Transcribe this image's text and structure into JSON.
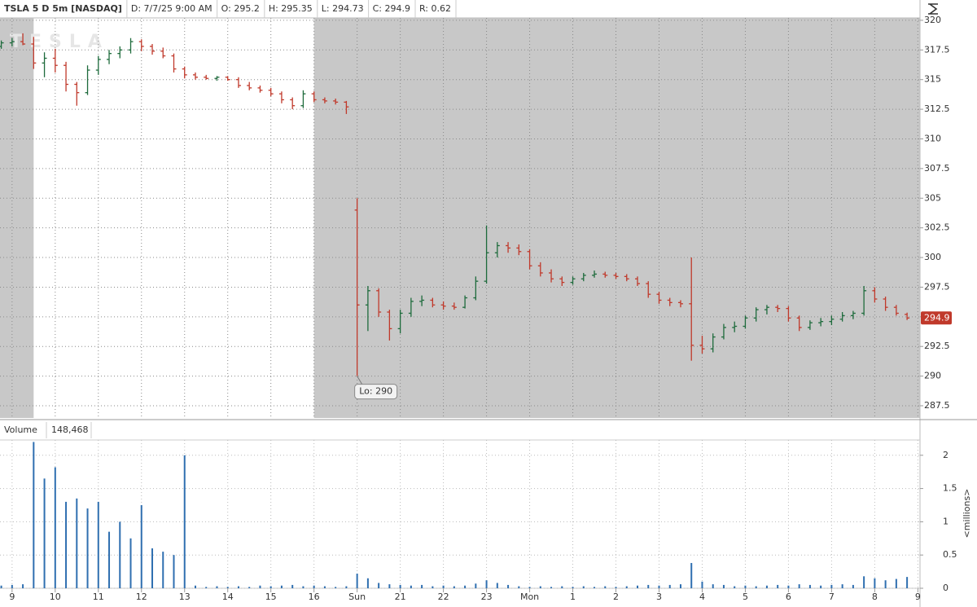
{
  "header": [
    "TSLA 5 D 5m [NASDAQ]",
    "D: 7/7/25 9:00 AM",
    "O: 295.2",
    "H: 295.35",
    "L: 294.73",
    "C: 294.9",
    "R: 0.62"
  ],
  "chart_data": [
    {
      "type": "ohlc",
      "watermark": "TESLA",
      "last_price": 294.9,
      "session": [
        0.5,
        7
      ],
      "up_color": "#1e6b3c",
      "down_color": "#c0392b",
      "grid": true,
      "xlim": [
        -0.28,
        21.05
      ],
      "ylim": [
        286.47,
        320.2
      ],
      "yticks": [
        287.5,
        290,
        292.5,
        295,
        297.5,
        300,
        302.5,
        305,
        307.5,
        310,
        312.5,
        315,
        317.5,
        320
      ],
      "annotation": {
        "text": "Lo: 290",
        "x": 8.0,
        "y": 290
      },
      "x": [
        -0.25,
        0,
        0.25,
        0.5,
        0.75,
        1,
        1.25,
        1.5,
        1.75,
        2,
        2.25,
        2.5,
        2.75,
        3,
        3.25,
        3.5,
        3.75,
        4,
        4.25,
        4.5,
        4.75,
        5,
        5.25,
        5.5,
        5.75,
        6,
        6.25,
        6.5,
        6.75,
        7,
        7.25,
        7.5,
        7.75,
        8,
        8.25,
        8.5,
        8.75,
        9,
        9.25,
        9.5,
        9.75,
        10,
        10.25,
        10.5,
        10.75,
        11,
        11.25,
        11.5,
        11.75,
        12,
        12.25,
        12.5,
        12.75,
        13,
        13.25,
        13.5,
        13.75,
        14,
        14.25,
        14.5,
        14.75,
        15,
        15.25,
        15.5,
        15.75,
        16,
        16.25,
        16.5,
        16.75,
        17,
        17.25,
        17.5,
        17.75,
        18,
        18.25,
        18.5,
        18.75,
        19,
        19.25,
        19.5,
        19.75,
        20,
        20.25,
        20.5,
        20.75
      ],
      "open": [
        317.8,
        318.1,
        318.2,
        318.0,
        316.4,
        316.8,
        316.2,
        314.6,
        313.9,
        315.8,
        316.7,
        317.2,
        317.5,
        318.2,
        317.8,
        317.4,
        317.0,
        315.9,
        315.4,
        315.2,
        315.1,
        315.2,
        315.0,
        314.5,
        314.3,
        314.1,
        313.8,
        313.3,
        312.8,
        313.8,
        313.3,
        313.2,
        313.1,
        304.0,
        296.0,
        297.2,
        295.4,
        294.0,
        295.3,
        296.3,
        296.4,
        296.0,
        295.9,
        295.8,
        296.6,
        298.0,
        300.4,
        301.0,
        300.8,
        300.5,
        299.3,
        298.7,
        298.2,
        297.9,
        298.2,
        298.5,
        298.6,
        298.5,
        298.4,
        298.2,
        297.8,
        296.9,
        296.4,
        296.2,
        296.1,
        292.6,
        292.3,
        293.3,
        294.1,
        294.2,
        294.9,
        295.6,
        295.8,
        295.7,
        294.9,
        294.1,
        294.5,
        294.6,
        294.8,
        295.1,
        295.3,
        297.2,
        296.5,
        295.8,
        295.2
      ],
      "high": [
        318.3,
        318.5,
        318.9,
        318.6,
        317.3,
        317.6,
        316.5,
        314.8,
        316.2,
        317.0,
        317.5,
        317.8,
        318.5,
        318.4,
        318.0,
        317.7,
        317.2,
        316.1,
        315.6,
        315.4,
        315.3,
        315.3,
        315.2,
        314.8,
        314.5,
        314.3,
        314.0,
        313.5,
        314.1,
        314.0,
        313.5,
        313.4,
        313.2,
        305.0,
        297.6,
        297.4,
        295.6,
        295.6,
        296.6,
        296.8,
        296.6,
        296.3,
        296.2,
        296.8,
        298.4,
        302.7,
        301.3,
        301.3,
        301.1,
        300.7,
        299.6,
        299.0,
        298.4,
        298.4,
        298.7,
        298.9,
        298.8,
        298.7,
        298.6,
        298.4,
        298.0,
        297.1,
        296.6,
        296.4,
        300.0,
        293.4,
        293.6,
        294.4,
        294.6,
        295.1,
        295.8,
        296.0,
        296.0,
        295.9,
        295.1,
        294.7,
        294.9,
        295.1,
        295.4,
        295.5,
        297.6,
        297.5,
        296.7,
        296.0,
        295.35
      ],
      "low": [
        317.6,
        317.8,
        317.9,
        315.9,
        315.2,
        315.6,
        314.0,
        312.8,
        313.7,
        315.4,
        316.3,
        316.8,
        317.2,
        317.4,
        317.1,
        316.8,
        315.6,
        315.1,
        315.0,
        315.0,
        314.9,
        314.9,
        314.3,
        314.1,
        313.9,
        313.6,
        313.0,
        312.5,
        312.6,
        313.1,
        313.0,
        312.9,
        312.1,
        290.0,
        293.8,
        295.0,
        293.0,
        293.6,
        295.0,
        295.9,
        295.8,
        295.6,
        295.6,
        295.7,
        296.4,
        297.8,
        300.0,
        300.4,
        300.2,
        299.0,
        298.4,
        297.9,
        297.6,
        297.7,
        298.0,
        298.3,
        298.3,
        298.2,
        298.0,
        297.6,
        296.6,
        296.1,
        295.9,
        295.8,
        291.3,
        291.9,
        292.0,
        293.1,
        293.7,
        294.0,
        294.6,
        295.2,
        295.4,
        294.6,
        293.8,
        293.9,
        294.2,
        294.3,
        294.6,
        294.8,
        295.1,
        296.2,
        295.5,
        295.1,
        294.73
      ],
      "close": [
        318.1,
        318.2,
        318.0,
        316.4,
        316.8,
        316.2,
        314.6,
        313.9,
        315.8,
        316.7,
        317.2,
        317.5,
        318.2,
        317.8,
        317.4,
        317.0,
        315.9,
        315.4,
        315.2,
        315.1,
        315.2,
        315.0,
        314.5,
        314.3,
        314.1,
        313.8,
        313.3,
        312.8,
        313.8,
        313.3,
        313.2,
        313.1,
        312.7,
        296.0,
        297.2,
        295.4,
        294.0,
        295.3,
        296.3,
        296.4,
        296.0,
        295.9,
        295.8,
        296.6,
        298.0,
        300.4,
        301.0,
        300.8,
        300.5,
        299.3,
        298.7,
        298.2,
        297.9,
        298.2,
        298.5,
        298.6,
        298.5,
        298.4,
        298.2,
        297.8,
        296.9,
        296.4,
        296.2,
        296.1,
        292.6,
        292.3,
        293.3,
        294.1,
        294.2,
        294.9,
        295.6,
        295.8,
        295.7,
        294.9,
        294.1,
        294.5,
        294.6,
        294.8,
        295.1,
        295.3,
        297.2,
        296.5,
        295.8,
        295.3,
        294.9
      ]
    },
    {
      "type": "bar",
      "title": "Volume",
      "value_label": "148,468",
      "ylabel": "<millions>",
      "color": "#2f6fb0",
      "xlim": [
        -0.28,
        21.05
      ],
      "ylim": [
        0,
        2.23
      ],
      "yticks": [
        0,
        0.5,
        1,
        1.5,
        2
      ],
      "xticks": [
        {
          "value": 0,
          "label": "9"
        },
        {
          "value": 1,
          "label": "10"
        },
        {
          "value": 2,
          "label": "11"
        },
        {
          "value": 3,
          "label": "12"
        },
        {
          "value": 4,
          "label": "13"
        },
        {
          "value": 5,
          "label": "14"
        },
        {
          "value": 6,
          "label": "15"
        },
        {
          "value": 7,
          "label": "16"
        },
        {
          "value": 8,
          "label": "Sun"
        },
        {
          "value": 9,
          "label": "21"
        },
        {
          "value": 10,
          "label": "22"
        },
        {
          "value": 11,
          "label": "23"
        },
        {
          "value": 12,
          "label": "Mon"
        },
        {
          "value": 13,
          "label": "1"
        },
        {
          "value": 14,
          "label": "2"
        },
        {
          "value": 15,
          "label": "3"
        },
        {
          "value": 16,
          "label": "4"
        },
        {
          "value": 17,
          "label": "5"
        },
        {
          "value": 18,
          "label": "6"
        },
        {
          "value": 19,
          "label": "7"
        },
        {
          "value": 20,
          "label": "8"
        },
        {
          "value": 21,
          "label": "9"
        }
      ],
      "x": [
        -0.25,
        0,
        0.25,
        0.5,
        0.75,
        1,
        1.25,
        1.5,
        1.75,
        2,
        2.25,
        2.5,
        2.75,
        3,
        3.25,
        3.5,
        3.75,
        4,
        4.25,
        4.5,
        4.75,
        5,
        5.25,
        5.5,
        5.75,
        6,
        6.25,
        6.5,
        6.75,
        7,
        7.25,
        7.5,
        7.75,
        8,
        8.25,
        8.5,
        8.75,
        9,
        9.25,
        9.5,
        9.75,
        10,
        10.25,
        10.5,
        10.75,
        11,
        11.25,
        11.5,
        11.75,
        12,
        12.25,
        12.5,
        12.75,
        13,
        13.25,
        13.5,
        13.75,
        14,
        14.25,
        14.5,
        14.75,
        15,
        15.25,
        15.5,
        15.75,
        16,
        16.25,
        16.5,
        16.75,
        17,
        17.25,
        17.5,
        17.75,
        18,
        18.25,
        18.5,
        18.75,
        19,
        19.25,
        19.5,
        19.75,
        20,
        20.25,
        20.5,
        20.75
      ],
      "values": [
        0.04,
        0.05,
        0.06,
        2.2,
        1.65,
        1.82,
        1.3,
        1.35,
        1.2,
        1.3,
        0.85,
        1.0,
        0.75,
        1.25,
        0.6,
        0.55,
        0.5,
        2.0,
        0.04,
        0.02,
        0.03,
        0.02,
        0.03,
        0.02,
        0.04,
        0.03,
        0.04,
        0.05,
        0.03,
        0.04,
        0.03,
        0.02,
        0.03,
        0.22,
        0.15,
        0.08,
        0.06,
        0.05,
        0.04,
        0.05,
        0.03,
        0.04,
        0.03,
        0.04,
        0.07,
        0.12,
        0.08,
        0.05,
        0.03,
        0.02,
        0.03,
        0.02,
        0.03,
        0.02,
        0.03,
        0.02,
        0.03,
        0.02,
        0.03,
        0.04,
        0.05,
        0.04,
        0.05,
        0.06,
        0.38,
        0.1,
        0.06,
        0.05,
        0.03,
        0.04,
        0.03,
        0.04,
        0.05,
        0.04,
        0.06,
        0.05,
        0.04,
        0.05,
        0.06,
        0.05,
        0.18,
        0.15,
        0.12,
        0.14,
        0.17
      ]
    }
  ]
}
